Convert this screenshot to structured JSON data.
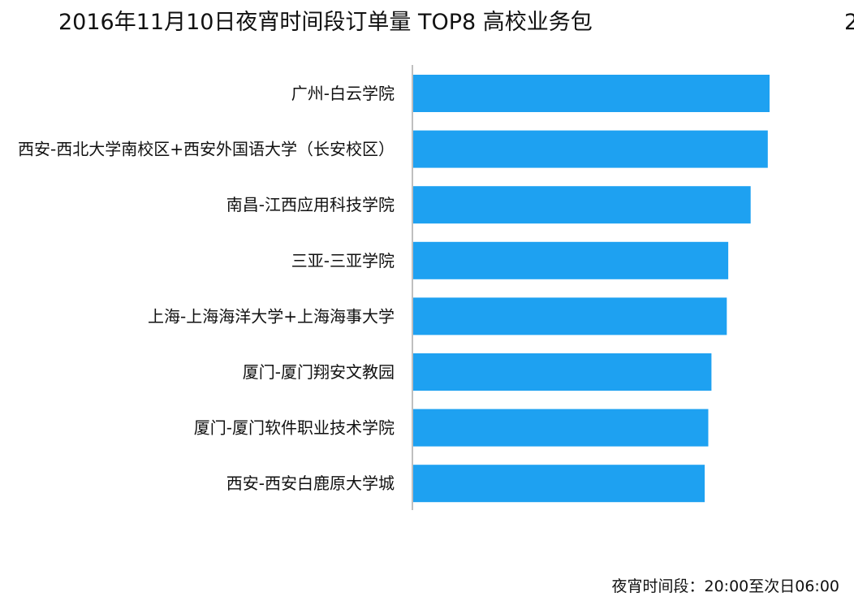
{
  "page_mark": "2",
  "chart_data": {
    "type": "bar",
    "orientation": "horizontal",
    "title": "2016年11月10日夜宵时间段订单量 TOP8 高校业务包",
    "categories": [
      "广州-白云学院",
      "西安-西北大学南校区+西安外国语大学（长安校区）",
      "南昌-江西应用科技学院",
      "三亚-三亚学院",
      "上海-上海海洋大学+上海海事大学",
      "厦门-厦门翔安文教园",
      "厦门-厦门软件职业技术学院",
      "西安-西安白鹿原大学城"
    ],
    "values": [
      100,
      99.5,
      94.7,
      88.4,
      88,
      83.7,
      82.8,
      81.8
    ],
    "xlim": [
      0,
      100
    ],
    "xlabel": "",
    "ylabel": "",
    "grid": false,
    "legend": "none",
    "bar_color": "#1ea1f1",
    "axis_color": "#bfbfbf",
    "footnote": "夜宵时间段：20:00至次日06:00"
  }
}
